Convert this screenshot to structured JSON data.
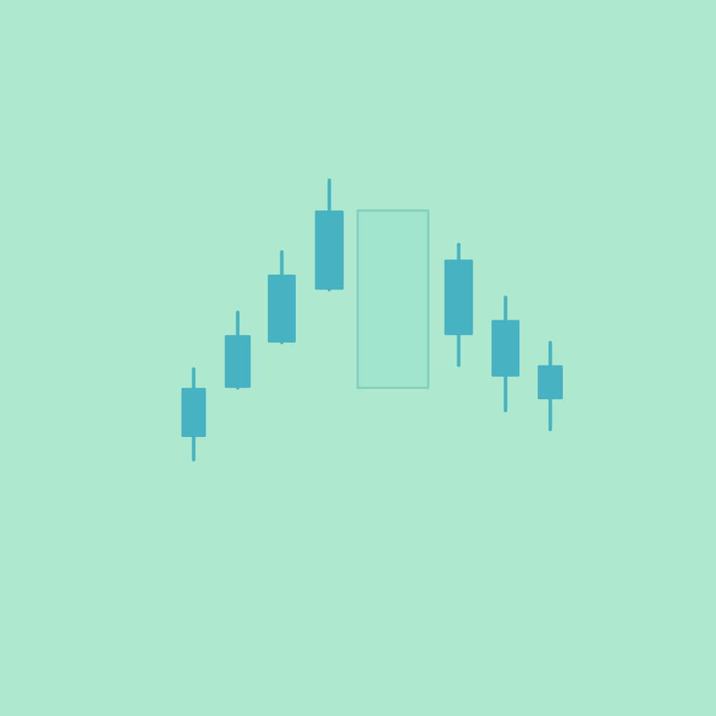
{
  "colors": {
    "background": "#aee8cf",
    "candle": "#47b3c2",
    "placeholder_fill": "#a0e2cb",
    "placeholder_stroke": "#7fd0bc"
  },
  "chart_data": {
    "type": "candlestick",
    "title": "",
    "xlabel": "",
    "ylabel": "",
    "axes_visible": false,
    "grid": false,
    "legend": "none",
    "ylim": [
      0,
      100
    ],
    "candles": [
      {
        "index": 1,
        "open": 53,
        "close": 40,
        "high": 58,
        "low": 34,
        "empty": false
      },
      {
        "index": 2,
        "open": 67,
        "close": 53,
        "high": 73,
        "low": 53,
        "empty": false
      },
      {
        "index": 3,
        "open": 83,
        "close": 65,
        "high": 89,
        "low": 65,
        "empty": false
      },
      {
        "index": 4,
        "open": 100,
        "close": 79,
        "high": 108,
        "low": 79,
        "empty": false
      },
      {
        "index": 5,
        "open": 100,
        "close": 53,
        "high": 100,
        "low": 53,
        "empty": true
      },
      {
        "index": 6,
        "open": 87,
        "close": 67,
        "high": 91,
        "low": 59,
        "empty": false
      },
      {
        "index": 7,
        "open": 71,
        "close": 56,
        "high": 77,
        "low": 47,
        "empty": false
      },
      {
        "index": 8,
        "open": 59,
        "close": 50,
        "high": 65,
        "low": 42,
        "empty": false
      }
    ]
  }
}
